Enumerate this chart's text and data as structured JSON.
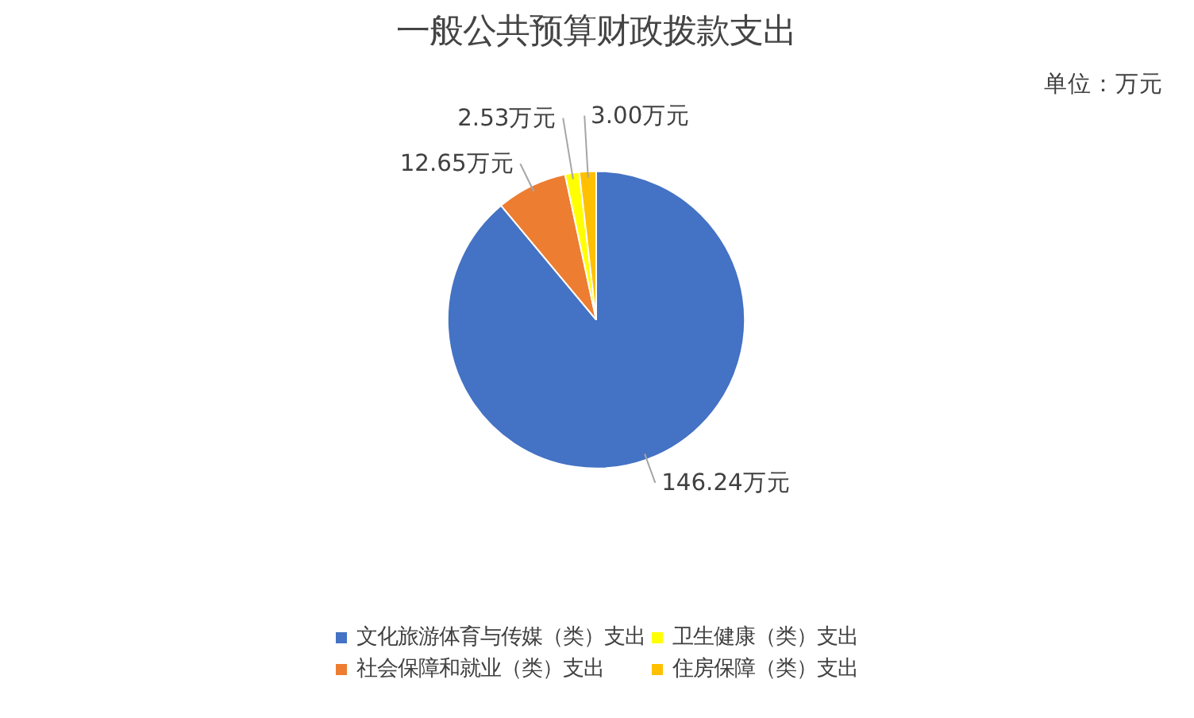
{
  "chart_data": {
    "type": "pie",
    "title": "一般公共预算财政拨款支出",
    "categories": [
      "文化旅游体育与传媒（类）支出",
      "社会保障和就业（类）支出",
      "卫生健康（类）支出",
      "住房保障（类）支出"
    ],
    "values": [
      146.24,
      12.65,
      2.53,
      3.0
    ],
    "colors": [
      "#4472c4",
      "#ed7d31",
      "#ffff00",
      "#ffc000"
    ],
    "value_labels": [
      "146.24万元",
      "12.65万元",
      "2.53万元",
      "3.00万元"
    ],
    "annotations": [
      "单位：万元"
    ],
    "legend": "bottom"
  }
}
